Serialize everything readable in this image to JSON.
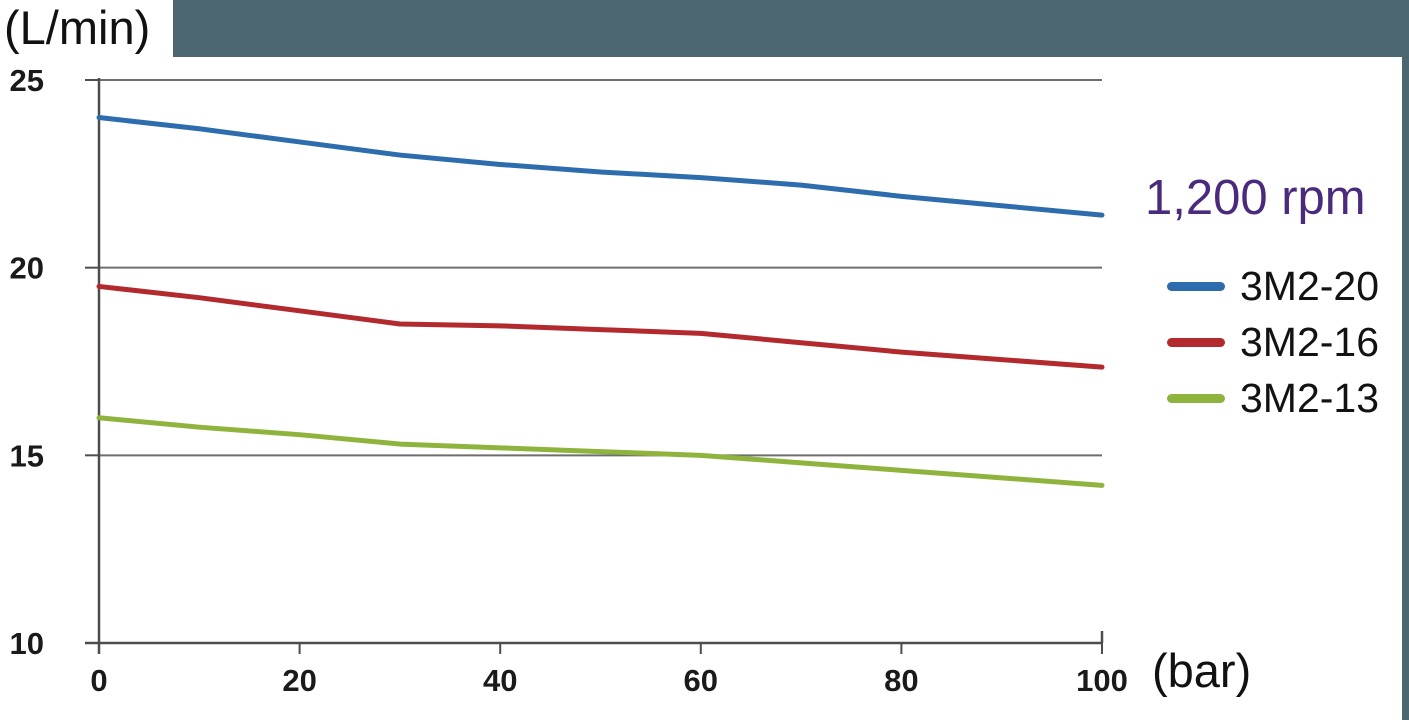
{
  "legend": {
    "title": "1,200 rpm",
    "title_color": "#4a2a7c"
  },
  "colors": {
    "header_bar": "#4c6670",
    "axis": "#4d4d4d",
    "grid": "#6e6e6e",
    "tick_text": "#1a1a1a"
  },
  "chart_data": {
    "type": "line",
    "title": "",
    "xlabel": "(bar)",
    "ylabel": "(L/min)",
    "x": [
      0,
      10,
      20,
      30,
      40,
      50,
      60,
      70,
      80,
      90,
      100
    ],
    "series": [
      {
        "name": "3M2-20",
        "color": "#2e6dad",
        "values": [
          24.0,
          23.7,
          23.35,
          23.0,
          22.75,
          22.55,
          22.4,
          22.2,
          21.9,
          21.65,
          21.4
        ]
      },
      {
        "name": "3M2-16",
        "color": "#b2292e",
        "values": [
          19.5,
          19.2,
          18.85,
          18.5,
          18.45,
          18.35,
          18.25,
          18.0,
          17.75,
          17.55,
          17.35
        ]
      },
      {
        "name": "3M2-13",
        "color": "#8fb43d",
        "values": [
          16.0,
          15.75,
          15.55,
          15.3,
          15.2,
          15.1,
          15.0,
          14.8,
          14.6,
          14.4,
          14.2
        ]
      }
    ],
    "x_ticks": [
      0,
      20,
      40,
      60,
      80,
      100
    ],
    "y_ticks": [
      25,
      20,
      15,
      10
    ],
    "xlim": [
      0,
      100
    ],
    "ylim": [
      10,
      25
    ],
    "grid": "horizontal",
    "legend_position": "right",
    "annotation": "1,200 rpm"
  }
}
